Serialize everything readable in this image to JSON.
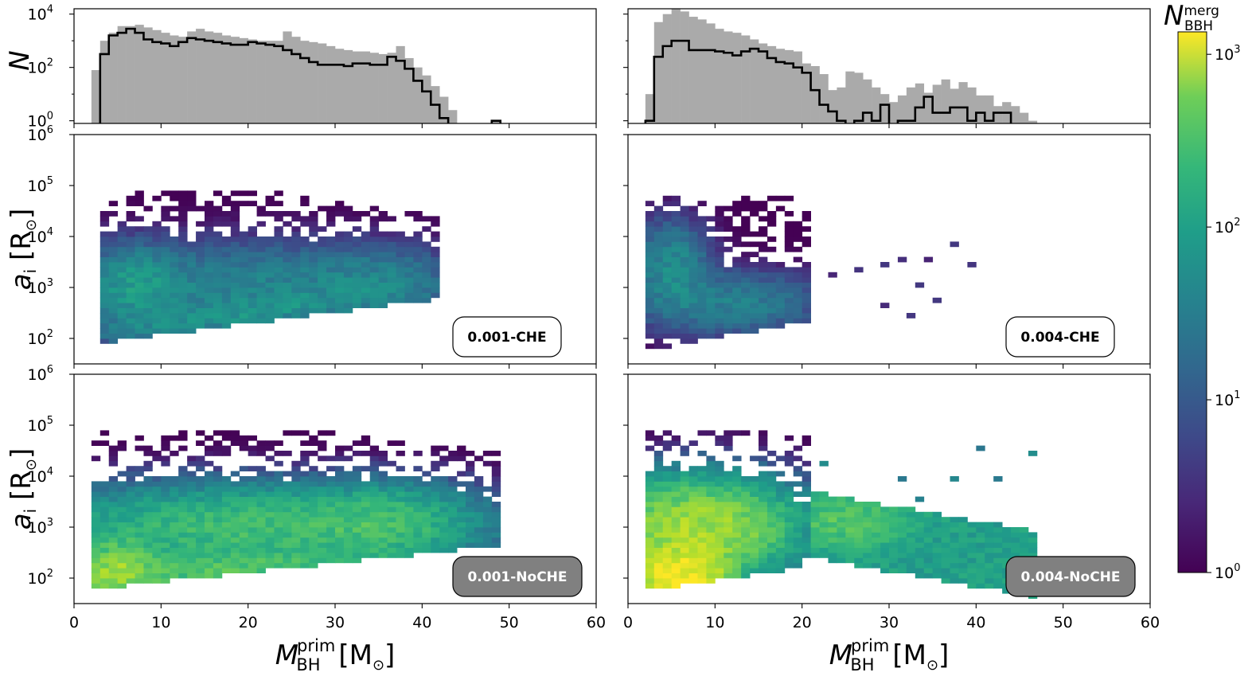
{
  "figure": {
    "colorbar_label": "N",
    "colorbar_label_sub": "BBH",
    "colorbar_label_sup": "merg",
    "colorbar_ticks": [
      {
        "value": 1,
        "label": "10",
        "exp": "0"
      },
      {
        "value": 10,
        "label": "10",
        "exp": "1"
      },
      {
        "value": 100,
        "label": "10",
        "exp": "2"
      },
      {
        "value": 1000,
        "label": "10",
        "exp": "3"
      }
    ],
    "x_label_main": "M",
    "x_label_sub": "BH",
    "x_label_sup": "prim",
    "x_label_units": " [M",
    "x_label_units_end": "]",
    "x_label_sun": "⊙",
    "hist_ylabel": "N",
    "scatter_ylabel_main": "a",
    "scatter_ylabel_sub": "i",
    "scatter_ylabel_units": " [R",
    "scatter_ylabel_units_end": "]",
    "scatter_ylabel_sun": "⊙",
    "x_ticks": [
      "0",
      "10",
      "20",
      "30",
      "40",
      "50",
      "60"
    ],
    "hist_y_ticks": [
      {
        "label": "10",
        "exp": "0",
        "value": 1
      },
      {
        "label": "10",
        "exp": "2",
        "value": 100
      },
      {
        "label": "10",
        "exp": "4",
        "value": 10000
      }
    ],
    "scatter_y_ticks": [
      {
        "label": "10",
        "exp": "2",
        "value": 100
      },
      {
        "label": "10",
        "exp": "3",
        "value": 1000
      },
      {
        "label": "10",
        "exp": "4",
        "value": 10000
      },
      {
        "label": "10",
        "exp": "5",
        "value": 100000
      },
      {
        "label": "10",
        "exp": "6",
        "value": 1000000
      }
    ],
    "badges": {
      "left_che": "0.001-CHE",
      "right_che": "0.004-CHE",
      "left_noche": "0.001-NoCHE",
      "right_noche": "0.004-NoCHE"
    },
    "colors": {
      "hist_fill": "#aaaaaa",
      "badge_dark": "#808080"
    }
  },
  "chart_data": [
    {
      "type": "histogram",
      "panel": "top-left",
      "ylabel": "N",
      "xlim": [
        0,
        60
      ],
      "ylim_log10": [
        -0.1,
        4.2
      ],
      "bin_width": 1,
      "x_start": 2,
      "gray_log10": [
        1.9,
        3.0,
        3.3,
        3.55,
        3.55,
        3.6,
        3.5,
        3.4,
        3.3,
        3.2,
        3.15,
        3.35,
        3.45,
        3.35,
        3.3,
        3.2,
        3.15,
        3.1,
        3.05,
        3.0,
        3.0,
        3.0,
        3.35,
        3.15,
        3.0,
        2.95,
        2.9,
        2.8,
        2.7,
        2.65,
        2.6,
        2.6,
        2.55,
        2.5,
        2.55,
        2.8,
        2.35,
        2.0,
        1.7,
        1.3,
        0.9,
        0.4,
        -1,
        -1,
        -1,
        -1,
        0.0
      ],
      "black_log10": [
        -1,
        2.5,
        3.2,
        3.3,
        3.45,
        3.3,
        3.05,
        2.95,
        2.9,
        2.8,
        2.95,
        3.1,
        3.05,
        3.0,
        2.95,
        2.9,
        2.85,
        2.85,
        2.95,
        2.9,
        2.85,
        2.8,
        2.65,
        2.5,
        2.35,
        2.2,
        2.1,
        2.1,
        2.1,
        2.05,
        2.15,
        2.15,
        2.1,
        2.1,
        2.4,
        2.25,
        1.95,
        1.5,
        1.1,
        0.6,
        0.1,
        -1,
        -1,
        -1,
        -1,
        -1,
        0.0
      ]
    },
    {
      "type": "histogram",
      "panel": "top-right",
      "ylabel": "N",
      "xlim": [
        0,
        60
      ],
      "ylim_log10": [
        -0.1,
        4.2
      ],
      "bin_width": 1,
      "x_start": 2,
      "gray_log10": [
        1.0,
        3.7,
        4.0,
        4.2,
        4.1,
        3.9,
        3.8,
        3.65,
        3.45,
        3.35,
        3.3,
        3.2,
        3.05,
        2.9,
        2.8,
        2.7,
        2.65,
        2.6,
        2.15,
        2.05,
        1.75,
        1.15,
        1.25,
        1.85,
        1.8,
        1.55,
        1.25,
        1.0,
        0.7,
        0.95,
        1.25,
        1.4,
        1.05,
        1.35,
        1.55,
        1.2,
        1.45,
        1.25,
        0.95,
        0.95,
        0.55,
        0.7,
        0.55,
        0.3,
        0.0
      ],
      "black_log10": [
        0.0,
        2.4,
        2.8,
        3.0,
        3.0,
        2.65,
        2.65,
        2.65,
        2.6,
        2.55,
        2.45,
        2.6,
        2.7,
        2.6,
        2.35,
        2.2,
        2.15,
        2.0,
        1.8,
        1.15,
        0.6,
        0.35,
        0.0,
        -1,
        0.0,
        0.3,
        0.0,
        0.6,
        -1,
        0.0,
        0.0,
        0.5,
        0.9,
        0.3,
        0.3,
        0.5,
        0.5,
        0.0,
        0.3,
        0.0,
        0.3,
        0.3,
        -1,
        -1,
        -1
      ]
    },
    {
      "type": "heatmap",
      "panel": "middle-left",
      "label": "0.001-CHE",
      "xlim": [
        0,
        60
      ],
      "ylim_log10": [
        1.5,
        6
      ],
      "x_range": [
        3,
        42
      ],
      "peak_count_log10": 2.0
    },
    {
      "type": "heatmap",
      "panel": "middle-right",
      "label": "0.004-CHE",
      "xlim": [
        0,
        60
      ],
      "ylim_log10": [
        1.5,
        6
      ],
      "x_range": [
        2,
        43
      ],
      "peak_count_log10": 1.9
    },
    {
      "type": "heatmap",
      "panel": "bottom-left",
      "label": "0.001-NoCHE",
      "xlim": [
        0,
        60
      ],
      "ylim_log10": [
        1.5,
        6
      ],
      "x_range": [
        2,
        49
      ],
      "peak_count_log10": 2.6
    },
    {
      "type": "heatmap",
      "panel": "bottom-right",
      "label": "0.004-NoCHE",
      "xlim": [
        0,
        60
      ],
      "ylim_log10": [
        1.5,
        6
      ],
      "x_range": [
        2,
        47
      ],
      "peak_count_log10": 3.0
    }
  ]
}
